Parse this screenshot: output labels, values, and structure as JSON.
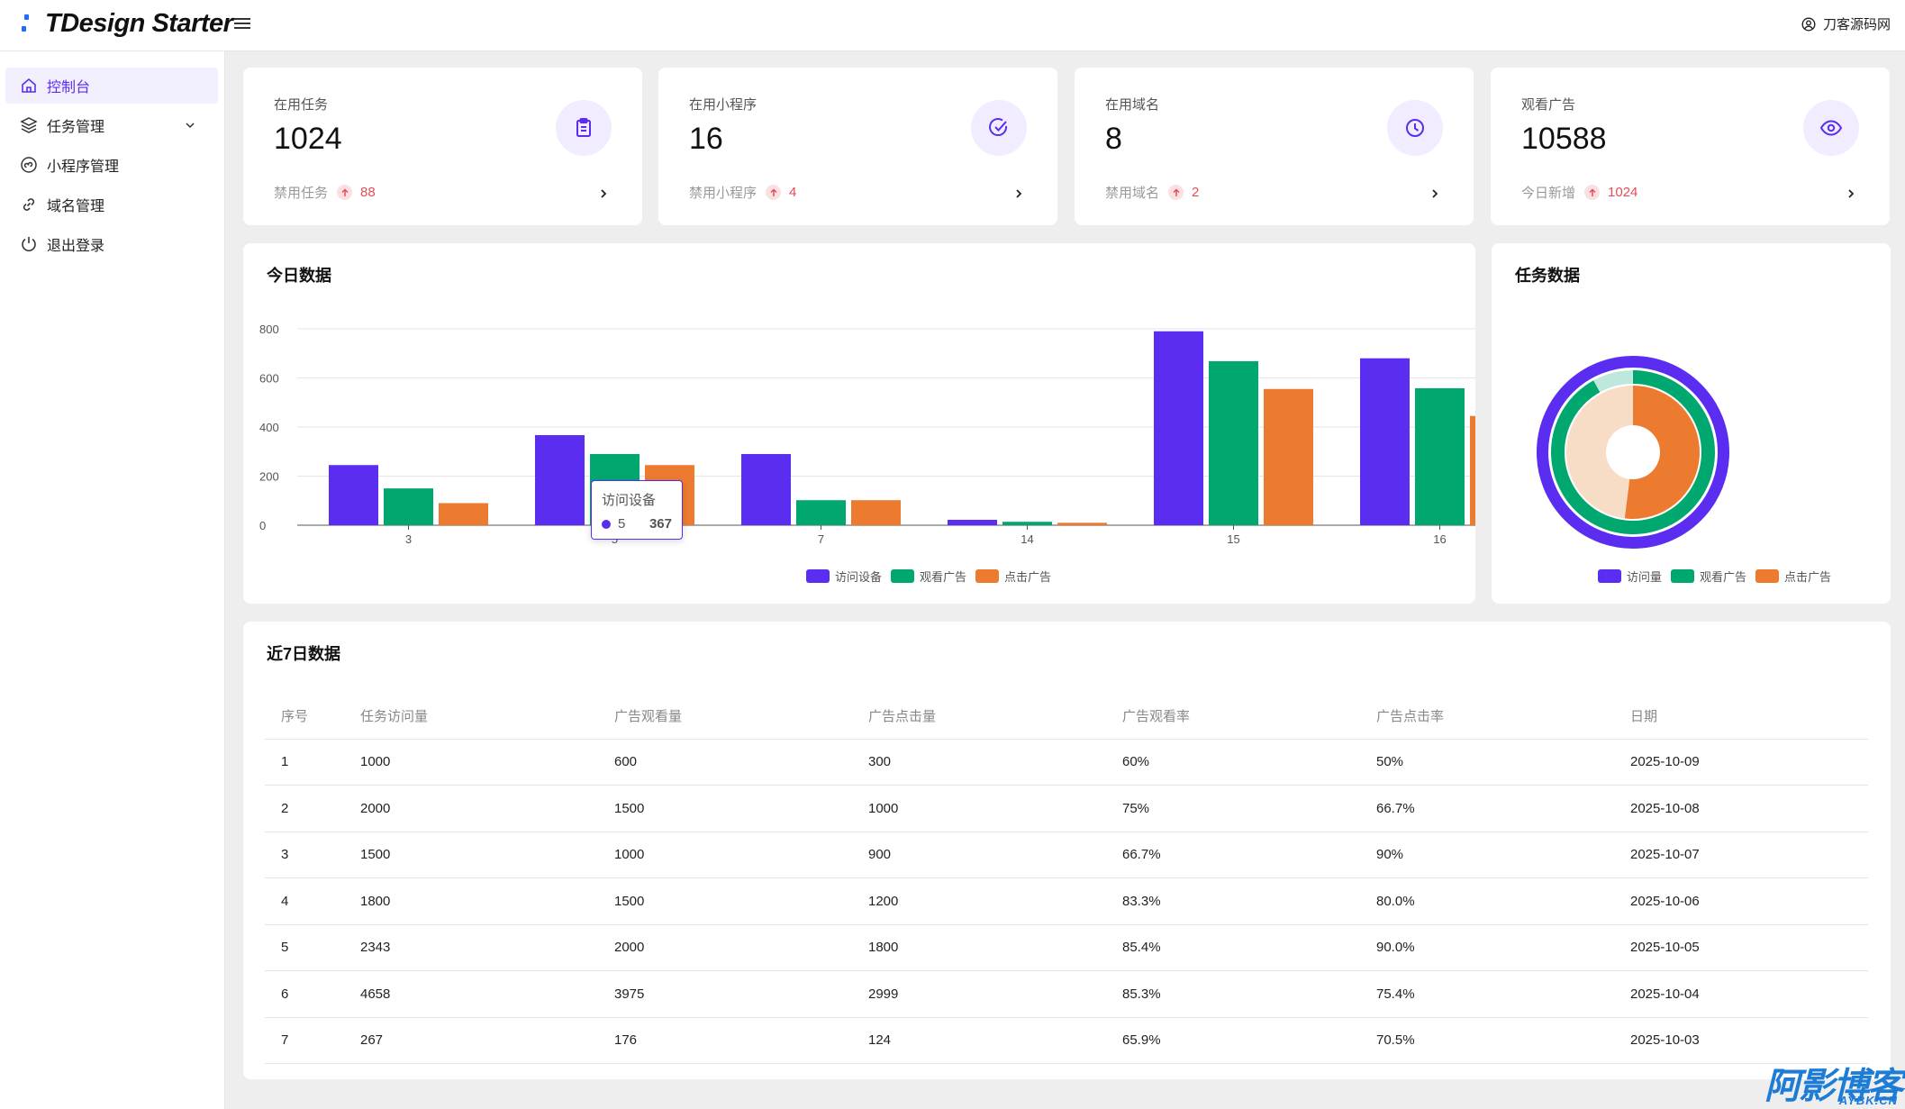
{
  "app": {
    "title": "TDesign Starter",
    "brand_color": "#1f6bff",
    "accent": "#5a2df0"
  },
  "header": {
    "user_name": "刀客源码网"
  },
  "sidebar": {
    "items": [
      {
        "label": "控制台",
        "icon": "home-icon",
        "active": true
      },
      {
        "label": "任务管理",
        "icon": "layers-icon",
        "expandable": true
      },
      {
        "label": "小程序管理",
        "icon": "mini-program-icon"
      },
      {
        "label": "域名管理",
        "icon": "link-icon"
      },
      {
        "label": "退出登录",
        "icon": "power-icon"
      }
    ]
  },
  "stats": [
    {
      "label": "在用任务",
      "value": "1024",
      "foot_label": "禁用任务",
      "foot_value": "88",
      "icon": "clipboard-icon"
    },
    {
      "label": "在用小程序",
      "value": "16",
      "foot_label": "禁用小程序",
      "foot_value": "4",
      "icon": "check-circle-icon"
    },
    {
      "label": "在用域名",
      "value": "8",
      "foot_label": "禁用域名",
      "foot_value": "2",
      "icon": "clock-icon"
    },
    {
      "label": "观看广告",
      "value": "10588",
      "foot_label": "今日新增",
      "foot_value": "1024",
      "icon": "eye-icon"
    }
  ],
  "today_chart": {
    "title": "今日数据",
    "tooltip": {
      "series": "访问设备",
      "category": "5",
      "value": "367"
    },
    "chart_data": {
      "type": "bar",
      "categories": [
        "3",
        "5",
        "7",
        "14",
        "15",
        "16"
      ],
      "series": [
        {
          "name": "访问设备",
          "color": "#5a2df0",
          "values": [
            245,
            367,
            290,
            22,
            790,
            680
          ]
        },
        {
          "name": "观看广告",
          "color": "#00a870",
          "values": [
            150,
            290,
            102,
            14,
            668,
            558
          ]
        },
        {
          "name": "点击广告",
          "color": "#ed7b2f",
          "values": [
            90,
            245,
            102,
            10,
            555,
            445
          ]
        }
      ],
      "yticks": [
        "800",
        "600",
        "400",
        "200",
        "0"
      ],
      "ylim": [
        0,
        800
      ],
      "grid": true,
      "legend": "bottom-center"
    }
  },
  "task_chart": {
    "title": "任务数据",
    "chart_data": {
      "type": "pie",
      "rings": [
        {
          "name": "访问量",
          "color": "#5a2df0",
          "fraction": 1.0
        },
        {
          "name": "观看广告",
          "color": "#00a870",
          "fraction": 0.92,
          "rest_color": "#bfe8dc"
        },
        {
          "name": "点击广告",
          "color": "#ed7b2f",
          "fraction": 0.52,
          "rest_color": "#f8ddc6"
        }
      ],
      "legend": "bottom-center"
    }
  },
  "weekly": {
    "title": "近7日数据",
    "columns": [
      "序号",
      "任务访问量",
      "广告观看量",
      "广告点击量",
      "广告观看率",
      "广告点击率",
      "日期"
    ],
    "rows": [
      [
        "1",
        "1000",
        "600",
        "300",
        "60%",
        "50%",
        "2025-10-09"
      ],
      [
        "2",
        "2000",
        "1500",
        "1000",
        "75%",
        "66.7%",
        "2025-10-08"
      ],
      [
        "3",
        "1500",
        "1000",
        "900",
        "66.7%",
        "90%",
        "2025-10-07"
      ],
      [
        "4",
        "1800",
        "1500",
        "1200",
        "83.3%",
        "80.0%",
        "2025-10-06"
      ],
      [
        "5",
        "2343",
        "2000",
        "1800",
        "85.4%",
        "90.0%",
        "2025-10-05"
      ],
      [
        "6",
        "4658",
        "3975",
        "2999",
        "85.3%",
        "75.4%",
        "2025-10-04"
      ],
      [
        "7",
        "267",
        "176",
        "124",
        "65.9%",
        "70.5%",
        "2025-10-03"
      ]
    ]
  },
  "watermark": {
    "text": "阿影博客",
    "sub": "AYBK.CN"
  }
}
